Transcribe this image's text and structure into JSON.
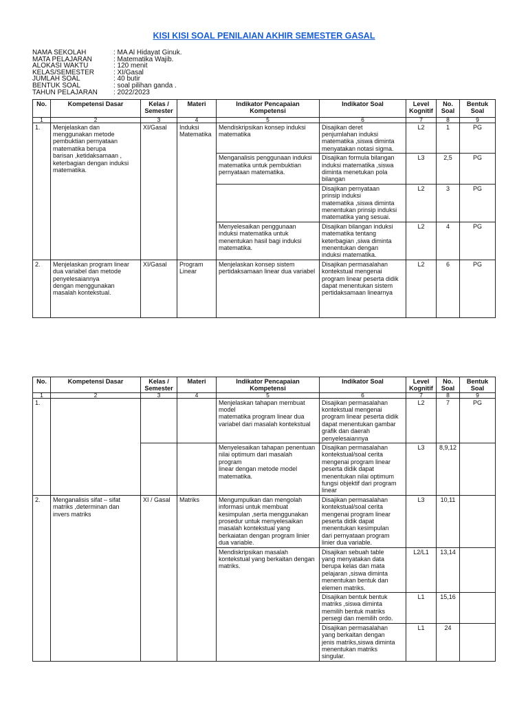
{
  "title": "KISI KISI SOAL PENILAIAN AKHIR SEMESTER GASAL",
  "info": [
    {
      "label": "NAMA SEKOLAH",
      "value": ": MA Al Hidayat Ginuk."
    },
    {
      "label": "MATA PELAJARAN",
      "value": ": Matematika Wajib."
    },
    {
      "label": "ALOKASI WAKTU",
      "value": ": 120 menit"
    },
    {
      "label": "KELAS/SEMESTER",
      "value": ": XI/Gasal"
    },
    {
      "label": "JUMLAH SOAL",
      "value": ": 40 butir"
    },
    {
      "label": "BENTUK SOAL",
      "value": ":  soal pilihan ganda ."
    },
    {
      "label": "TAHUN PELAJARAN",
      "value": ": 2022/2023"
    }
  ],
  "headers": [
    "No.",
    "Kompetensi Dasar",
    "Kelas /\nSemester",
    "Materi",
    "Indikator Pencapaian\nKompetensi",
    "Indikator Soal",
    "Level\nKognitif",
    "No.\nSoal",
    "Bentuk\nSoal"
  ],
  "col_numbers": [
    "1",
    "2",
    "3",
    "4",
    "5",
    "6",
    "7",
    "8",
    "9"
  ],
  "table1": {
    "row1": {
      "no": "1.",
      "kd": "Menjelaskan dan\nmenggunakan metode\npembuktian pernyataan\nmatematika berupa\nbarisan ,ketidaksamaan ,\nketerbagian dengan induksi\nmatematika.",
      "kelas": "XI/Gasal",
      "materi": "Induksi\nMatematika",
      "sub": [
        {
          "ipk": "Mendiskripsikan konsep induksi\nmatematika",
          "is": "Disajikan deret\npenjumlahan induksi\nmatematika ,siswa diminta\nmenyatakan notasi sigma.",
          "level": "L2",
          "no_soal": "1",
          "bentuk": "PG"
        },
        {
          "ipk": "Menganalisis penggunaan induksi\nmatematika untuk pembuktian\npernyataan matematika.",
          "is": "Disajikan formula bilangan\ninduksi matematika ,siswa\ndiminta menetukan pola\nbilangan",
          "level": "L3",
          "no_soal": "2,5",
          "bentuk": "PG"
        },
        {
          "ipk": "",
          "is": "Disajikan pernyataan\nprinsip induksi\nmatematika ,siswa diminta\nmenentukan prinsip induksi\nmatematika yang sesuai.",
          "level": "L2",
          "no_soal": "3",
          "bentuk": "PG"
        },
        {
          "ipk": "Menyelesaikan penggunaan\ninduksi matematika untuk\nmenentukan hasil bagi  induksi\nmatematika.",
          "is": "Disajikan bilangan induksi\nmatematika tentang\nketerbagian ,siwa diminta\nmenentukan dengan\ninduksi matematika.",
          "level": "L2",
          "no_soal": "4",
          "bentuk": "PG"
        }
      ]
    },
    "row2": {
      "no": "2.",
      "kd": "Menjelaskan program linear\ndua variabel dan metode\npenyelesaiannya\ndengan menggunakan\nmasalah kontekstual.",
      "kelas": "XI/Gasal",
      "materi": "Program\nLinear",
      "ipk": "Menjelaskan konsep sistem\npertidaksamaan linear dua variabel",
      "is": "Disajikan permasalahan\nkontekstual mengenai\nprogram linear peserta didik\ndapat menentukan sistem\npertidaksamaan linearnya",
      "level": "L2",
      "no_soal": "6",
      "bentuk": "PG"
    }
  },
  "table2": {
    "row1": {
      "no": "1.",
      "sub": [
        {
          "ipk": "Menjelaskan tahapan membuat\nmodel\nmatematika program linear dua\nvariabel dari masalah kontekstual",
          "is": "Disajikan permasalahan\nkontekstual mengenai\nprogram linear peserta didik\ndapat menentukan gambar\ngrafik dan daerah\npenyelesaiannya",
          "level": "L2",
          "no_soal": "7",
          "bentuk": "PG"
        },
        {
          "ipk": "Menyelesaikan tahapan penentuan\nnilai optimum dari masalah\nprogram\nlinear dengan metode model\nmatematika.",
          "is": "Disajikan permasalahan\nkontekstual/soal cerita\nmengenai program linear\npeserta didik dapat\nmenentukan nilai optimum\nfungsi objektif dari program\nlinear",
          "level": "L3",
          "no_soal": "8,9,12",
          "bentuk": ""
        }
      ]
    },
    "row2": {
      "no": "2.",
      "kd": "Menganalisis sifat – sifat\nmatriks ,determinan dan\ninvers matriks",
      "kelas": "XI / Gasal",
      "materi": "Matriks",
      "ipk1": "Mengumpulkan dan mengolah\ninformasi untuk membuat\nkesimpulan ,serta menggunakan\nprosedur untuk menyelesaikan\nmasalah kontekstual yang\nberkaiatan dengan program linier\ndua variable.",
      "ipk2": "Mendiskripsikan masalah\nkontekstual yang berkaitan dengan\nmatriks.",
      "sub": [
        {
          "is": "Disajikan permasalahan\nkontekstual/soal cerita\nmengenai program linear\npeserta didik dapat\nmenentukan kesimpulan\ndari pernyataan program\nlinier dua variable.",
          "level": "L3",
          "no_soal": "10,11",
          "bentuk": ""
        },
        {
          "is": "Disajikan sebuah table\nyang menyatakan data\nberupa kelas dan mata\npelajaran ,siswa diminta\nmenentukan bentuk dan\nelemen matriks.",
          "level": "L2/L1",
          "no_soal": "13,14",
          "bentuk": ""
        },
        {
          "is": "Disajikan bentuk bentuk\nmatriks ,siswa diminta\nmemilih bentuk matriks\npersegi dan memilih ordo.",
          "level": "L1",
          "no_soal": "15,16",
          "bentuk": ""
        },
        {
          "is": "Disajikan permasalahan\nyang berkaitan dengan\njenis  matriks,siswa diminta\nmenentukan matriks\nsingular.",
          "level": "L1",
          "no_soal": "24",
          "bentuk": ""
        }
      ]
    }
  }
}
